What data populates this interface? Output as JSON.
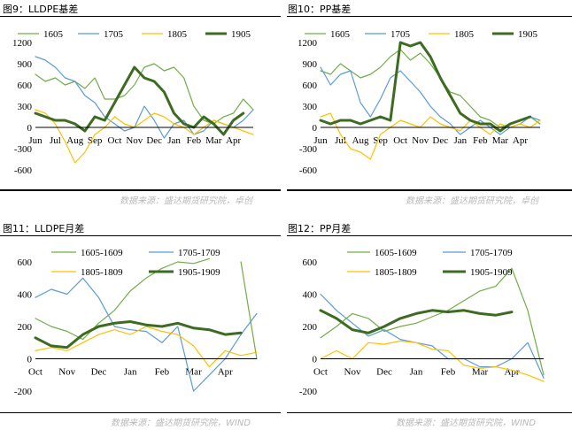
{
  "panels": [
    {
      "title": "图9：LLDPE基差",
      "source": "数据来源：盛达期货研究院，卓创",
      "chart_data": {
        "type": "line",
        "ylim": [
          -600,
          1200
        ],
        "yticks": [
          -600,
          -300,
          0,
          300,
          600,
          900,
          1200
        ],
        "xticks": [
          "Jun",
          "Jul",
          "Aug",
          "Sep",
          "Oct",
          "Nov",
          "Dec",
          "Jan",
          "Feb",
          "Mar",
          "Apr"
        ],
        "x": [
          0,
          0.5,
          1,
          1.5,
          2,
          2.5,
          3,
          3.5,
          4,
          4.5,
          5,
          5.5,
          6,
          6.5,
          7,
          7.5,
          8,
          8.5,
          9,
          9.5,
          10,
          10.5,
          11
        ],
        "series": [
          {
            "name": "1605",
            "color": "#70ad47",
            "width": 1.2,
            "values": [
              750,
              650,
              700,
              600,
              650,
              550,
              700,
              400,
              400,
              450,
              600,
              850,
              900,
              800,
              850,
              700,
              300,
              100,
              50,
              150,
              200,
              400,
              250
            ]
          },
          {
            "name": "1705",
            "color": "#5b9bd5",
            "width": 1.2,
            "values": [
              1000,
              950,
              850,
              700,
              650,
              450,
              350,
              150,
              50,
              -50,
              0,
              300,
              100,
              -150,
              50,
              100,
              -100,
              -50,
              100,
              50,
              0,
              100,
              250
            ]
          },
          {
            "name": "1805",
            "color": "#ffc000",
            "width": 1.2,
            "values": [
              250,
              200,
              50,
              -200,
              -500,
              -350,
              -100,
              0,
              150,
              50,
              0,
              100,
              200,
              150,
              50,
              0,
              -100,
              0,
              100,
              50,
              0,
              -50,
              -100
            ]
          },
          {
            "name": "1905",
            "color": "#3d6b22",
            "width": 3.0,
            "values": [
              200,
              150,
              100,
              100,
              50,
              -50,
              150,
              100,
              350,
              600,
              850,
              700,
              650,
              500,
              200,
              50,
              0,
              150,
              50,
              -100,
              100,
              200,
              null
            ]
          }
        ]
      }
    },
    {
      "title": "图10：PP基差",
      "source": "数据来源：盛达期货研究院，卓创",
      "chart_data": {
        "type": "line",
        "ylim": [
          -600,
          1200
        ],
        "yticks": [
          -600,
          -300,
          0,
          300,
          600,
          900,
          1200
        ],
        "xticks": [
          "Jun",
          "Jul",
          "Aug",
          "Sep",
          "Oct",
          "Nov",
          "Dec",
          "Jan",
          "Feb",
          "Mar",
          "Apr"
        ],
        "x": [
          0,
          0.5,
          1,
          1.5,
          2,
          2.5,
          3,
          3.5,
          4,
          4.5,
          5,
          5.5,
          6,
          6.5,
          7,
          7.5,
          8,
          8.5,
          9,
          9.5,
          10,
          10.5,
          11
        ],
        "series": [
          {
            "name": "1605",
            "color": "#70ad47",
            "width": 1.2,
            "values": [
              800,
              750,
              900,
              800,
              700,
              750,
              850,
              1000,
              1100,
              950,
              1050,
              900,
              700,
              500,
              450,
              300,
              150,
              100,
              0,
              50,
              100,
              150,
              50
            ]
          },
          {
            "name": "1705",
            "color": "#5b9bd5",
            "width": 1.2,
            "values": [
              850,
              600,
              750,
              800,
              350,
              150,
              400,
              700,
              800,
              650,
              500,
              300,
              150,
              50,
              -100,
              0,
              100,
              0,
              -100,
              0,
              50,
              150,
              100
            ]
          },
          {
            "name": "1805",
            "color": "#ffc000",
            "width": 1.2,
            "values": [
              150,
              200,
              -100,
              -300,
              -350,
              -450,
              -100,
              0,
              100,
              50,
              0,
              150,
              50,
              0,
              -50,
              100,
              0,
              -100,
              50,
              0,
              50,
              0,
              100
            ]
          },
          {
            "name": "1905",
            "color": "#3d6b22",
            "width": 3.0,
            "values": [
              100,
              50,
              100,
              100,
              50,
              100,
              150,
              100,
              1200,
              1150,
              1200,
              1000,
              700,
              450,
              200,
              100,
              50,
              50,
              -50,
              50,
              100,
              150,
              null
            ]
          }
        ]
      }
    },
    {
      "title": "图11：LLDPE月差",
      "source": "数据来源：盛达期货研究院，WIND",
      "chart_data": {
        "type": "line",
        "ylim": [
          -200,
          600
        ],
        "yticks": [
          -200,
          0,
          200,
          400,
          600
        ],
        "xticks": [
          "Oct",
          "Nov",
          "Dec",
          "Jan",
          "Feb",
          "Mar",
          "Apr"
        ],
        "x": [
          0,
          0.5,
          1,
          1.5,
          2,
          2.5,
          3,
          3.5,
          4,
          4.5,
          5,
          5.5,
          6,
          6.5,
          7
        ],
        "series": [
          {
            "name": "1605-1609",
            "color": "#70ad47",
            "width": 1.2,
            "values": [
              250,
              200,
              170,
              120,
              220,
              300,
              420,
              500,
              560,
              600,
              590,
              620,
              null,
              600,
              0
            ]
          },
          {
            "name": "1705-1709",
            "color": "#5b9bd5",
            "width": 1.2,
            "values": [
              380,
              430,
              400,
              500,
              380,
              200,
              180,
              170,
              100,
              200,
              -200,
              -100,
              0,
              150,
              280
            ]
          },
          {
            "name": "1805-1809",
            "color": "#ffc000",
            "width": 1.2,
            "values": [
              50,
              70,
              50,
              100,
              150,
              180,
              150,
              200,
              170,
              150,
              80,
              -50,
              50,
              20,
              40
            ]
          },
          {
            "name": "1905-1909",
            "color": "#3d6b22",
            "width": 3.0,
            "values": [
              130,
              80,
              70,
              150,
              200,
              220,
              230,
              210,
              200,
              220,
              190,
              180,
              150,
              160,
              null
            ]
          }
        ]
      }
    },
    {
      "title": "图12：PP月差",
      "source": "数据来源：盛达期货研究院，WIND",
      "chart_data": {
        "type": "line",
        "ylim": [
          -200,
          600
        ],
        "yticks": [
          -200,
          0,
          200,
          400,
          600
        ],
        "xticks": [
          "Oct",
          "Nov",
          "Dec",
          "Jan",
          "Feb",
          "Mar",
          "Apr"
        ],
        "x": [
          0,
          0.5,
          1,
          1.5,
          2,
          2.5,
          3,
          3.5,
          4,
          4.5,
          5,
          5.5,
          6,
          6.5,
          7
        ],
        "series": [
          {
            "name": "1605-1609",
            "color": "#70ad47",
            "width": 1.2,
            "values": [
              130,
              200,
              280,
              250,
              170,
              200,
              220,
              260,
              300,
              360,
              420,
              450,
              560,
              300,
              -100
            ]
          },
          {
            "name": "1705-1709",
            "color": "#5b9bd5",
            "width": 1.2,
            "values": [
              400,
              300,
              220,
              140,
              180,
              120,
              100,
              80,
              0,
              0,
              -50,
              -50,
              0,
              100,
              -120
            ]
          },
          {
            "name": "1805-1809",
            "color": "#ffc000",
            "width": 1.2,
            "values": [
              0,
              50,
              0,
              100,
              90,
              110,
              100,
              60,
              50,
              -40,
              -60,
              -50,
              -70,
              -100,
              -140
            ]
          },
          {
            "name": "1905-1909",
            "color": "#3d6b22",
            "width": 3.0,
            "values": [
              300,
              250,
              180,
              160,
              200,
              250,
              280,
              300,
              290,
              300,
              280,
              270,
              290,
              null,
              null
            ]
          }
        ]
      }
    }
  ]
}
